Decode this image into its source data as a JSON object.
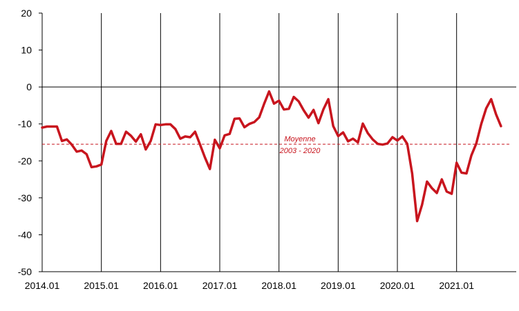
{
  "chart_data": {
    "type": "line",
    "title": "",
    "xlabel": "",
    "ylabel": "",
    "ylim": [
      -50,
      20
    ],
    "yticks": [
      20,
      10,
      0,
      -10,
      -20,
      -30,
      -40,
      -50
    ],
    "xticks": [
      "2014.01",
      "2015.01",
      "2016.01",
      "2017.01",
      "2018.01",
      "2019.01",
      "2020.01",
      "2021.01"
    ],
    "x_start": "2014.01",
    "x_step": "month",
    "grid": "vertical lines at each year",
    "legend": "none",
    "colors": {
      "series": "#c8151e",
      "reference": "#c8151e",
      "axis": "#000000"
    },
    "series": [
      {
        "values": [
          -11,
          -10.7,
          -10.7,
          -10.7,
          -14.6,
          -14.2,
          -15.6,
          -17.5,
          -17.2,
          -18.2,
          -21.7,
          -21.5,
          -21,
          -14.6,
          -11.9,
          -15.4,
          -15.4,
          -12.1,
          -13.2,
          -14.8,
          -12.8,
          -16.9,
          -14.6,
          -10.1,
          -10.3,
          -10.1,
          -10.1,
          -11.4,
          -14,
          -13.4,
          -13.6,
          -12.1,
          -15.6,
          -19.1,
          -22.2,
          -14.3,
          -16.6,
          -13.1,
          -12.7,
          -8.6,
          -8.5,
          -10.9,
          -10,
          -9.5,
          -8.2,
          -4.5,
          -1.2,
          -4.5,
          -3.7,
          -6.1,
          -5.9,
          -2.7,
          -3.9,
          -6.3,
          -8.3,
          -6.2,
          -9.8,
          -6.1,
          -3.3,
          -10.6,
          -13.3,
          -12.3,
          -14.7,
          -14,
          -15,
          -9.9,
          -12.5,
          -14.2,
          -15.4,
          -15.6,
          -15.3,
          -13.6,
          -14.5,
          -13.4,
          -15.4,
          -23.4,
          -36.3,
          -31.9,
          -25.6,
          -27.4,
          -28.7,
          -25,
          -28.3,
          -28.9,
          -20.5,
          -23.2,
          -23.4,
          -18.5,
          -15.3,
          -10,
          -5.8,
          -3.3,
          -7.4,
          -10.6
        ]
      }
    ],
    "reference_line": {
      "value": -15.5,
      "label_line1": "Moyenne",
      "label_line2": "2003 - 2020"
    }
  }
}
